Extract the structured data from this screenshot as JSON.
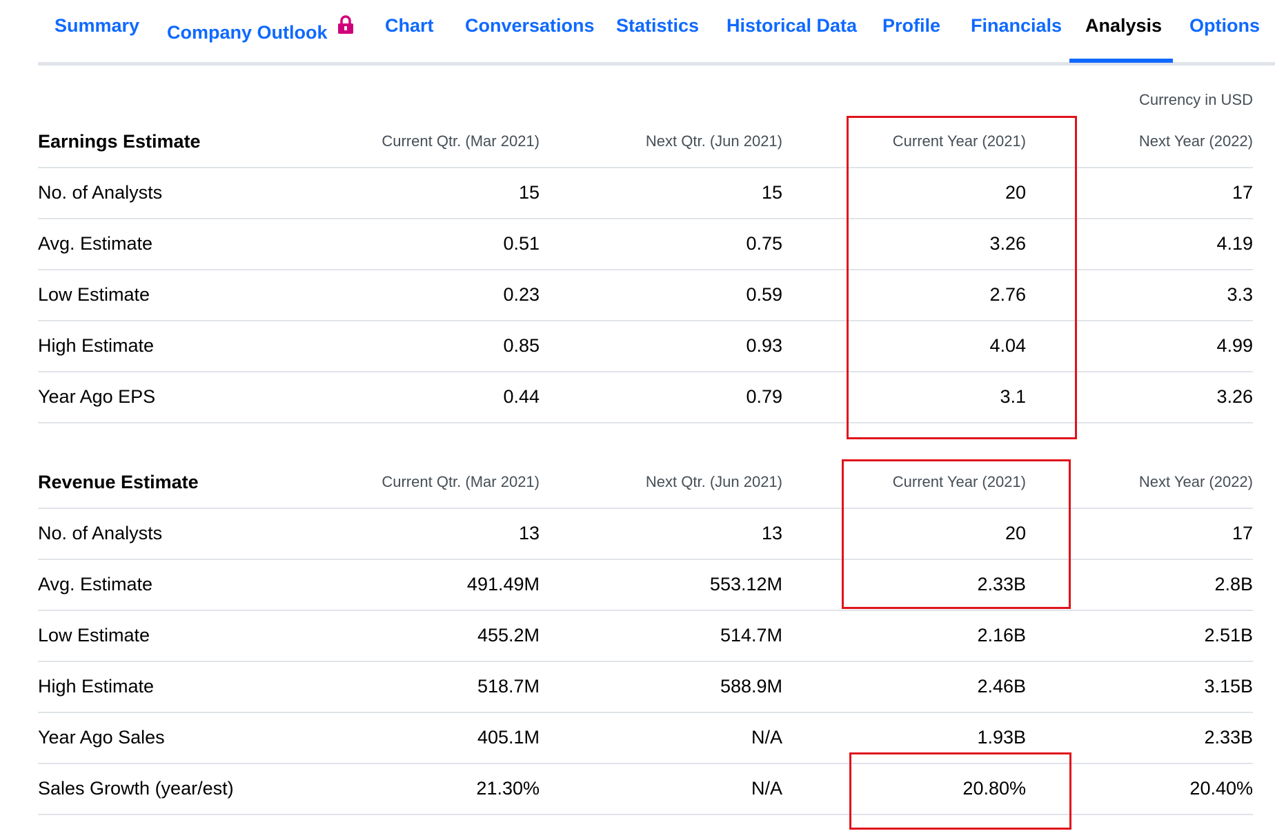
{
  "tabs": [
    {
      "label": "Summary",
      "active": false
    },
    {
      "label": "Company Outlook",
      "active": false,
      "icon": "lock-icon"
    },
    {
      "label": "Chart",
      "active": false
    },
    {
      "label": "Conversations",
      "active": false
    },
    {
      "label": "Statistics",
      "active": false
    },
    {
      "label": "Historical Data",
      "active": false
    },
    {
      "label": "Profile",
      "active": false
    },
    {
      "label": "Financials",
      "active": false
    },
    {
      "label": "Analysis",
      "active": true
    },
    {
      "label": "Options",
      "active": false
    }
  ],
  "currency": "Currency in USD",
  "colors": {
    "link": "#0f69ff",
    "highlight": "#e0131b",
    "lock": "#d1007a"
  },
  "earnings": {
    "title": "Earnings Estimate",
    "columns": [
      "Current Qtr. (Mar 2021)",
      "Next Qtr. (Jun 2021)",
      "Current Year (2021)",
      "Next Year (2022)"
    ],
    "rows": [
      {
        "label": "No. of Analysts",
        "values": [
          "15",
          "15",
          "20",
          "17"
        ]
      },
      {
        "label": "Avg. Estimate",
        "values": [
          "0.51",
          "0.75",
          "3.26",
          "4.19"
        ]
      },
      {
        "label": "Low Estimate",
        "values": [
          "0.23",
          "0.59",
          "2.76",
          "3.3"
        ]
      },
      {
        "label": "High Estimate",
        "values": [
          "0.85",
          "0.93",
          "4.04",
          "4.99"
        ]
      },
      {
        "label": "Year Ago EPS",
        "values": [
          "0.44",
          "0.79",
          "3.1",
          "3.26"
        ]
      }
    ]
  },
  "revenue": {
    "title": "Revenue Estimate",
    "columns": [
      "Current Qtr. (Mar 2021)",
      "Next Qtr. (Jun 2021)",
      "Current Year (2021)",
      "Next Year (2022)"
    ],
    "rows": [
      {
        "label": "No. of Analysts",
        "values": [
          "13",
          "13",
          "20",
          "17"
        ]
      },
      {
        "label": "Avg. Estimate",
        "values": [
          "491.49M",
          "553.12M",
          "2.33B",
          "2.8B"
        ]
      },
      {
        "label": "Low Estimate",
        "values": [
          "455.2M",
          "514.7M",
          "2.16B",
          "2.51B"
        ]
      },
      {
        "label": "High Estimate",
        "values": [
          "518.7M",
          "588.9M",
          "2.46B",
          "3.15B"
        ]
      },
      {
        "label": "Year Ago Sales",
        "values": [
          "405.1M",
          "N/A",
          "1.93B",
          "2.33B"
        ]
      },
      {
        "label": "Sales Growth (year/est)",
        "values": [
          "21.30%",
          "N/A",
          "20.80%",
          "20.40%"
        ]
      }
    ]
  }
}
